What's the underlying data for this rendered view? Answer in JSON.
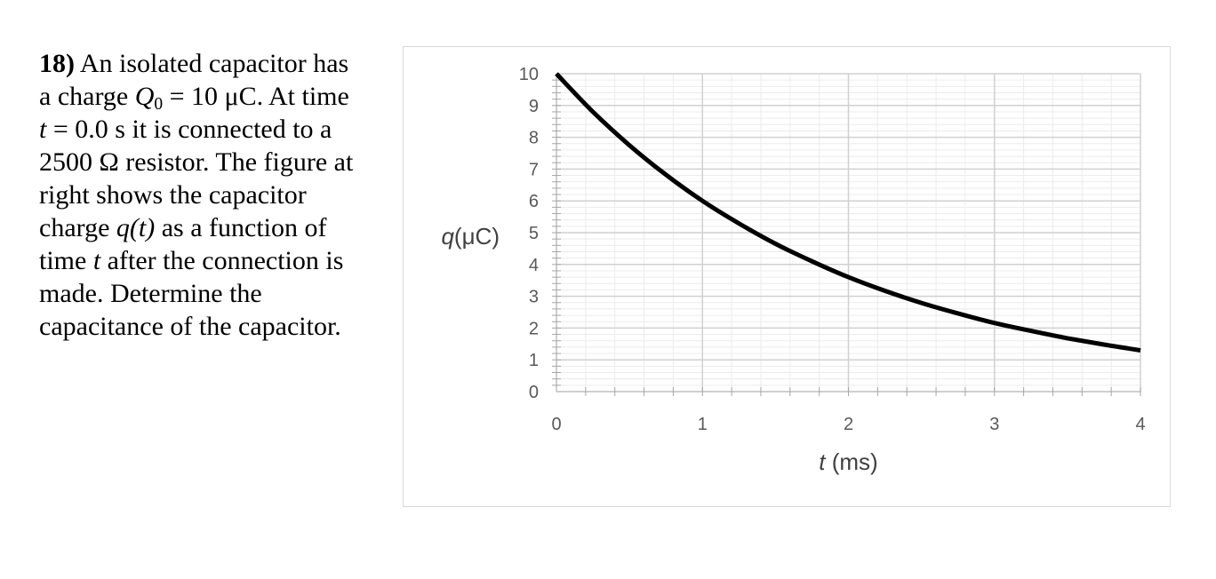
{
  "problem": {
    "number": "18)",
    "lines": [
      {
        "pre": " An isolated capacitor has"
      },
      {
        "pre": "a charge ",
        "math": "Q",
        "sub": "0",
        "post": " = 10 μC. At time"
      },
      {
        "math": "t",
        "post": " = 0.0 s it is connected to a"
      },
      {
        "pre": "2500 Ω resistor. The figure at"
      },
      {
        "pre": "right shows the capacitor"
      },
      {
        "pre": "charge ",
        "math": "q(t)",
        "post": " as a function of"
      },
      {
        "pre": "time ",
        "math": "t",
        "post": " after the connection is"
      },
      {
        "pre": "made. Determine the"
      },
      {
        "pre": "capacitance of the capacitor."
      }
    ]
  },
  "chart_data": {
    "type": "line",
    "title": "",
    "xlabel_var": "t",
    "xlabel_unit": " (ms)",
    "ylabel_var": "q",
    "ylabel_unit": "(μC)",
    "xlim": [
      0,
      4
    ],
    "ylim": [
      0,
      10
    ],
    "x_ticks": [
      "0",
      "1",
      "2",
      "3",
      "4"
    ],
    "y_ticks": [
      "0",
      "1",
      "2",
      "3",
      "4",
      "5",
      "6",
      "7",
      "8",
      "9",
      "10"
    ],
    "x_minor_step": 0.2,
    "y_minor_step": 0.2,
    "grid": true,
    "series": [
      {
        "color": "#000000",
        "x": [
          0,
          0.25,
          0.5,
          0.75,
          1.0,
          1.25,
          1.5,
          1.75,
          2.0,
          2.25,
          2.5,
          2.75,
          3.0,
          3.25,
          3.5,
          3.75,
          4.0
        ],
        "y": [
          10,
          8.8,
          7.75,
          6.82,
          6.0,
          5.29,
          4.65,
          4.1,
          3.6,
          3.17,
          2.79,
          2.46,
          2.16,
          1.91,
          1.68,
          1.48,
          1.3
        ]
      }
    ]
  }
}
